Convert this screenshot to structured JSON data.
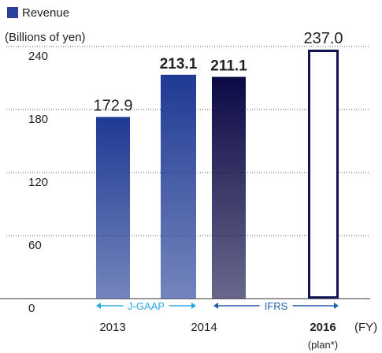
{
  "chart_data": {
    "type": "bar",
    "legend": "Revenue",
    "y_label": "(Billions of yen)",
    "x_label": "(FY)",
    "categories": [
      "2013",
      "2014",
      null,
      "2016"
    ],
    "plan_note": "(plan*)",
    "values": [
      172.9,
      213.1,
      211.1,
      237.0
    ],
    "value_labels": [
      "172.9",
      "213.1",
      "211.1",
      "237.0"
    ],
    "colors": [
      "#1f3a93",
      "#1f3a93",
      "#0c0a45",
      "#141450"
    ],
    "outlined": [
      false,
      false,
      false,
      true
    ],
    "annotations": [
      {
        "text": "J-GAAP",
        "color": "#29a9e0"
      },
      {
        "text": "IFRS",
        "color": "#1f5fa8"
      }
    ],
    "ylim": [
      0,
      240
    ],
    "yticks": [
      0,
      60,
      120,
      180,
      240
    ],
    "grid": true
  }
}
